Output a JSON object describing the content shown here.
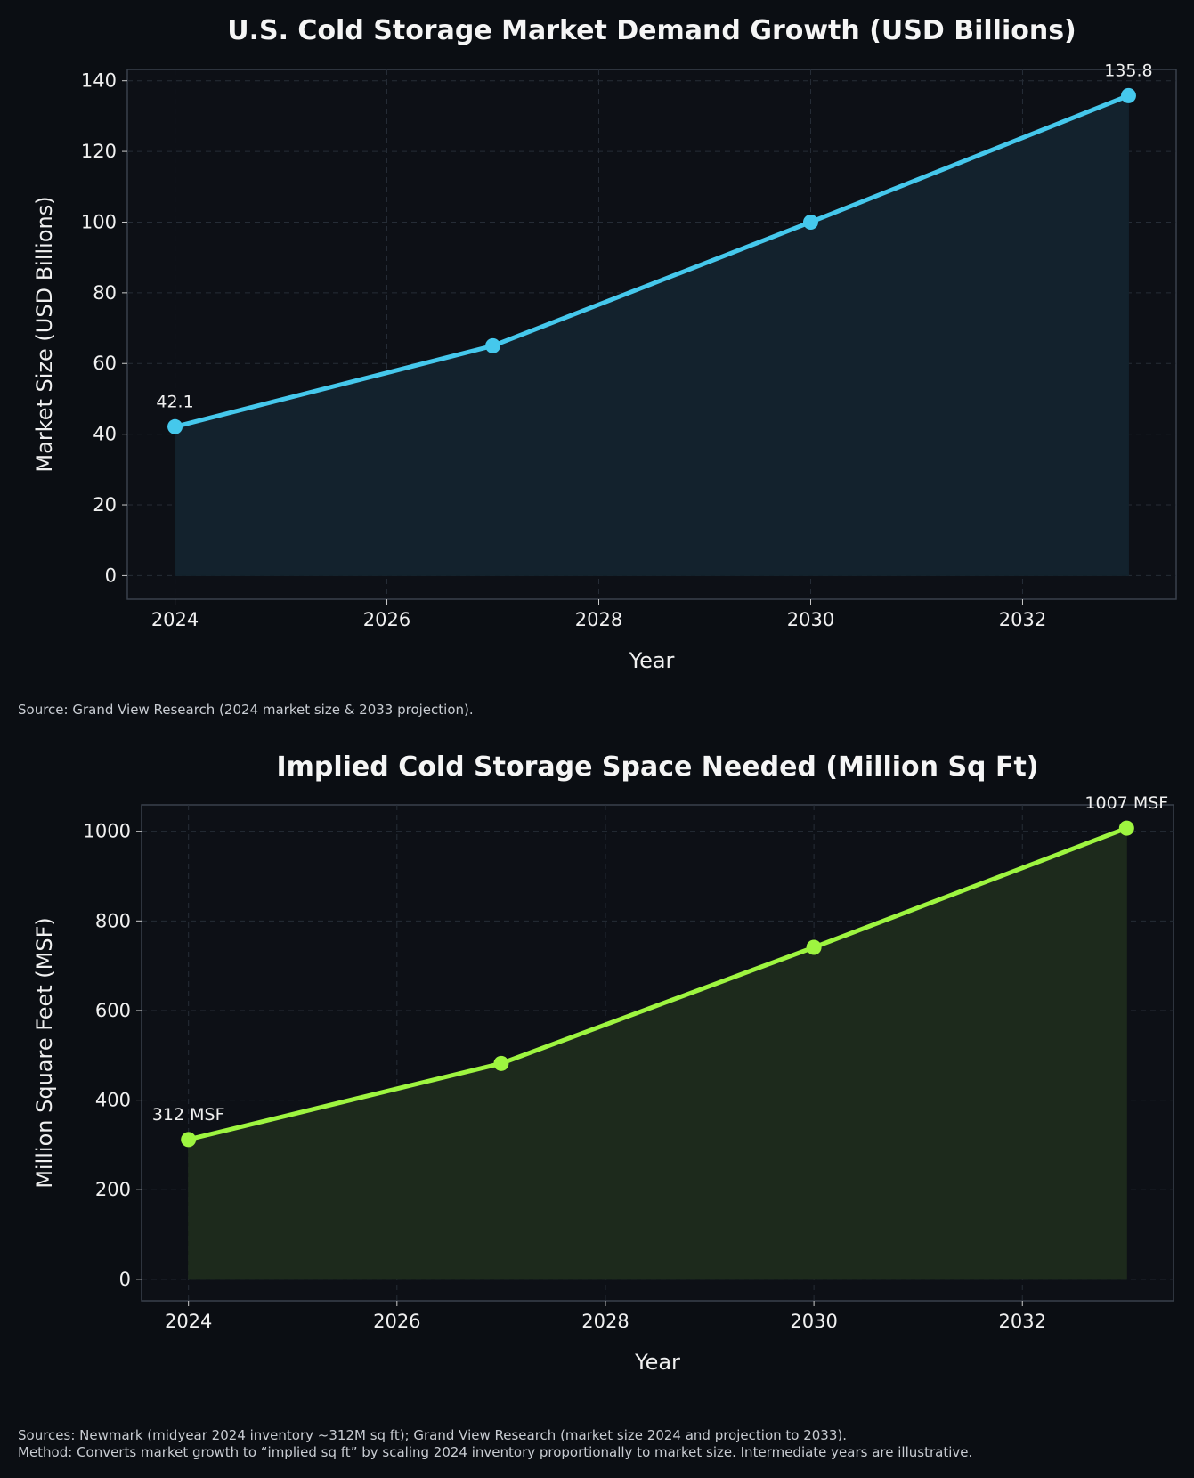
{
  "colors": {
    "background": "#0b0e13",
    "panel": "#0d1016",
    "grid": "#2a313b",
    "text": "#f0f0f0",
    "note": "#c8ccd2"
  },
  "chart_data": [
    {
      "type": "area",
      "title": "U.S. Cold Storage Market Demand Growth (USD Billions)",
      "xlabel": "Year",
      "ylabel": "Market Size (USD Billions)",
      "x": [
        2024,
        2027,
        2030,
        2033
      ],
      "values": [
        42.1,
        65.0,
        100.0,
        135.8
      ],
      "point_labels": [
        "42.1",
        "",
        "",
        "135.8"
      ],
      "xticks": [
        "2024",
        "2026",
        "2028",
        "2030",
        "2032"
      ],
      "yticks": [
        "0",
        "20",
        "40",
        "60",
        "80",
        "100",
        "120",
        "140"
      ],
      "xlim": [
        2023.55,
        2033.45
      ],
      "ylim": [
        -6.7,
        143.2
      ],
      "grid": true,
      "color": "#45c8ec",
      "fill": "#13222d",
      "note": "Source: Grand View Research (2024 market size & 2033 projection)."
    },
    {
      "type": "area",
      "title": "Implied Cold Storage Space Needed (Million Sq Ft)",
      "xlabel": "Year",
      "ylabel": "Million Square Feet (MSF)",
      "x": [
        2024,
        2027,
        2030,
        2033
      ],
      "values": [
        312,
        482,
        741,
        1007
      ],
      "point_labels": [
        "312 MSF",
        "",
        "",
        "1007 MSF"
      ],
      "xticks": [
        "2024",
        "2026",
        "2028",
        "2030",
        "2032"
      ],
      "yticks": [
        "0",
        "200",
        "400",
        "600",
        "800",
        "1000"
      ],
      "xlim": [
        2023.55,
        2033.45
      ],
      "ylim": [
        -48,
        1059
      ],
      "grid": true,
      "color": "#9ef540",
      "fill": "#1d2a1c",
      "note": ""
    }
  ],
  "footer": {
    "line1": "Sources: Newmark (midyear 2024 inventory ~312M sq ft); Grand View Research (market size 2024 and projection to 2033).",
    "line2": "Method: Converts market growth to “implied sq ft” by scaling 2024 inventory proportionally to market size. Intermediate years are illustrative."
  }
}
